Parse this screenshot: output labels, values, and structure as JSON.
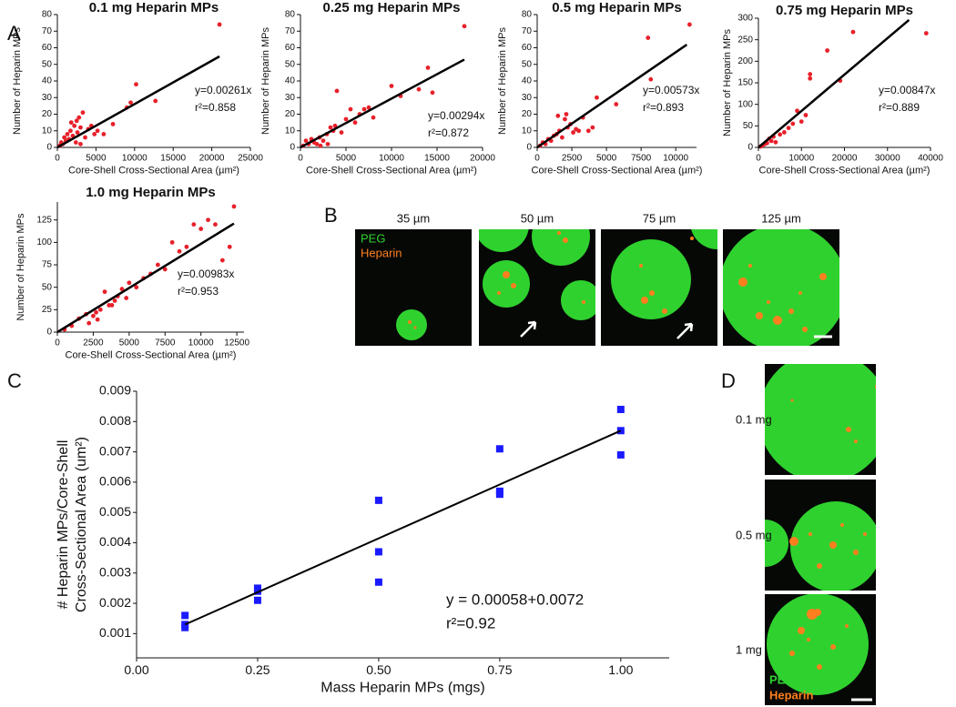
{
  "panel_a": {
    "label": "A"
  },
  "panel_c": {
    "label": "C"
  },
  "panel_b": {
    "label": "B",
    "sizes": [
      "35 µm",
      "50 µm",
      "75 µm",
      "125 µm"
    ],
    "legend": [
      "PEG",
      "Heparin"
    ]
  },
  "panel_d": {
    "label": "D",
    "doses": [
      "0.1 mg",
      "0.5 mg",
      "1 mg"
    ],
    "legend": [
      "PEG",
      "Heparin"
    ]
  },
  "chart_data": [
    {
      "type": "scatter",
      "title": "0.1 mg Heparin MPs",
      "xlabel": "Core-Shell Cross-Sectional Area (µm²)",
      "ylabel": "Number of Heparin MPs",
      "xlim": [
        0,
        25000
      ],
      "xticks": [
        0,
        5000,
        10000,
        15000,
        20000,
        25000
      ],
      "ylim": [
        0,
        80
      ],
      "yticks": [
        0,
        10,
        20,
        30,
        40,
        50,
        60,
        70,
        80
      ],
      "series": [
        {
          "color": "#e8202a",
          "marker": "circle",
          "x": [
            300,
            500,
            700,
            900,
            1100,
            1300,
            1500,
            1700,
            2000,
            2200,
            2400,
            2600,
            2800,
            3000,
            3300,
            3600,
            4000,
            4400,
            4800,
            5200,
            3000,
            2500,
            1800,
            6000,
            7200,
            9000,
            9500,
            10200,
            12700,
            21000
          ],
          "values": [
            1,
            3,
            2,
            6,
            4,
            8,
            5,
            10,
            7,
            13,
            3,
            9,
            18,
            12,
            21,
            6,
            11,
            13,
            8,
            10,
            2,
            16,
            15,
            8,
            14,
            24,
            27,
            38,
            28,
            74
          ]
        }
      ],
      "fit_line": {
        "color": "#000000",
        "x": [
          0,
          21000
        ],
        "y": [
          0,
          54.8
        ]
      },
      "annotations": [
        "y=0.00261x",
        "r²=0.858"
      ]
    },
    {
      "type": "scatter",
      "title": "0.25 mg Heparin MPs",
      "xlabel": "Core-Shell Cross-Sectional Area (µm²)",
      "ylabel": "Number of Heparin MPs",
      "xlim": [
        0,
        20000
      ],
      "xticks": [
        0,
        5000,
        10000,
        15000,
        20000
      ],
      "ylim": [
        0,
        80
      ],
      "yticks": [
        0,
        10,
        20,
        30,
        40,
        50,
        60,
        70,
        80
      ],
      "series": [
        {
          "color": "#e8202a",
          "marker": "circle",
          "x": [
            300,
            600,
            900,
            1200,
            1500,
            1800,
            2100,
            2500,
            2900,
            3300,
            3600,
            4000,
            3800,
            4500,
            5000,
            5500,
            6000,
            6500,
            7000,
            7500,
            8000,
            3000,
            2200,
            10000,
            11000,
            13000,
            14000,
            14500,
            18000
          ],
          "values": [
            1,
            4,
            2,
            5,
            3,
            2,
            6,
            4,
            8,
            12,
            10,
            34,
            13,
            9,
            17,
            23,
            15,
            20,
            23,
            24,
            18,
            2,
            1,
            37,
            31,
            35,
            48,
            33,
            73
          ]
        }
      ],
      "fit_line": {
        "color": "#000000",
        "x": [
          0,
          18000
        ],
        "y": [
          0,
          52.9
        ]
      },
      "annotations": [
        "y=0.00294x",
        "r²=0.872"
      ]
    },
    {
      "type": "scatter",
      "title": "0.5 mg Heparin MPs",
      "xlabel": "Core-Shell Cross-Sectional Area (µm²)",
      "ylabel": "Number of Heparin MPs",
      "xlim": [
        0,
        11500
      ],
      "xticks": [
        0,
        2500,
        5000,
        7500,
        10000
      ],
      "ylim": [
        0,
        80
      ],
      "yticks": [
        0,
        10,
        20,
        30,
        40,
        50,
        60,
        70,
        80
      ],
      "series": [
        {
          "color": "#e8202a",
          "marker": "circle",
          "x": [
            200,
            400,
            600,
            800,
            1000,
            1200,
            1400,
            1600,
            1800,
            2000,
            2200,
            2400,
            2600,
            2800,
            3000,
            1500,
            2100,
            3300,
            3700,
            4000,
            4300,
            5700,
            8000,
            8200,
            11000
          ],
          "values": [
            1,
            3,
            2,
            5,
            4,
            7,
            8,
            10,
            6,
            17,
            12,
            14,
            9,
            11,
            10,
            19,
            20,
            18,
            10,
            12,
            30,
            26,
            66,
            41,
            74
          ]
        }
      ],
      "fit_line": {
        "color": "#000000",
        "x": [
          0,
          10800
        ],
        "y": [
          0,
          61.9
        ]
      },
      "annotations": [
        "y=0.00573x",
        "r²=0.893"
      ]
    },
    {
      "type": "scatter",
      "title": "0.75 mg Heparin MPs",
      "xlabel": "Core-Shell Cross-Sectional Area (µm²)",
      "ylabel": "Number of Heparin MPs",
      "xlim": [
        0,
        40000
      ],
      "xticks": [
        0,
        10000,
        20000,
        30000,
        40000
      ],
      "ylim": [
        0,
        300
      ],
      "yticks": [
        0,
        50,
        100,
        150,
        200,
        250,
        300
      ],
      "series": [
        {
          "color": "#e8202a",
          "marker": "circle",
          "x": [
            500,
            1000,
            1500,
            2000,
            2500,
            3000,
            3500,
            4000,
            5000,
            6000,
            7000,
            8000,
            9000,
            10000,
            11000,
            12000,
            12000,
            16000,
            19000,
            22000,
            39000
          ],
          "values": [
            2,
            5,
            8,
            10,
            20,
            15,
            25,
            12,
            30,
            35,
            45,
            55,
            85,
            60,
            75,
            170,
            160,
            225,
            155,
            268,
            265
          ]
        }
      ],
      "fit_line": {
        "color": "#000000",
        "x": [
          0,
          35000
        ],
        "y": [
          0,
          296
        ]
      },
      "annotations": [
        "y=0.00847x",
        "r²=0.889"
      ]
    },
    {
      "type": "scatter",
      "title": "1.0 mg Heparin MPs",
      "xlabel": "Core-Shell Cross-Sectional Area (µm²)",
      "ylabel": "Number of Heparin MPs",
      "xlim": [
        0,
        13000
      ],
      "xticks": [
        0,
        2500,
        5000,
        7500,
        10000,
        12500
      ],
      "ylim": [
        0,
        145
      ],
      "yticks": [
        0,
        25,
        50,
        75,
        100,
        125
      ],
      "series": [
        {
          "color": "#e8202a",
          "marker": "circle",
          "x": [
            500,
            1000,
            1500,
            2000,
            2200,
            2500,
            2800,
            3000,
            3300,
            3600,
            4000,
            4200,
            4500,
            4800,
            5000,
            5500,
            6000,
            6500,
            7000,
            7500,
            8000,
            8500,
            9000,
            9500,
            10000,
            10500,
            11000,
            11500,
            12000,
            12300,
            2700,
            3800
          ],
          "values": [
            3,
            7,
            15,
            20,
            10,
            18,
            14,
            25,
            45,
            30,
            35,
            40,
            48,
            38,
            55,
            50,
            60,
            65,
            75,
            70,
            100,
            90,
            95,
            120,
            115,
            125,
            120,
            80,
            95,
            140,
            22,
            30
          ]
        }
      ],
      "fit_line": {
        "color": "#000000",
        "x": [
          0,
          12300
        ],
        "y": [
          0,
          121
        ]
      },
      "annotations": [
        "y=0.00983x",
        "r²=0.953"
      ]
    },
    {
      "type": "scatter",
      "xlabel": "Mass Heparin MPs (mgs)",
      "ylabel": [
        "# Heparin MPs/Core-Shell",
        "Cross-Sectional Area (um²)"
      ],
      "xlim": [
        0,
        1.1
      ],
      "xticks": [
        {
          "value": 0,
          "label": "0.00"
        },
        {
          "value": 0.25,
          "label": "0.25"
        },
        {
          "value": 0.5,
          "label": "0.50"
        },
        {
          "value": 0.75,
          "label": "0.75"
        },
        {
          "value": 1,
          "label": "1.00"
        }
      ],
      "ylim": [
        0.0002,
        0.009
      ],
      "yticks": [
        0.001,
        0.002,
        0.003,
        0.004,
        0.005,
        0.006,
        0.007,
        0.008,
        0.009
      ],
      "series": [
        {
          "color": "#1a1aff",
          "marker": "square",
          "x": [
            0.1,
            0.1,
            0.1,
            0.25,
            0.25,
            0.25,
            0.5,
            0.5,
            0.5,
            0.75,
            0.75,
            0.75,
            1,
            1,
            1
          ],
          "values": [
            0.0016,
            0.0013,
            0.0012,
            0.0025,
            0.0024,
            0.0021,
            0.0054,
            0.0037,
            0.0027,
            0.0071,
            0.0057,
            0.0056,
            0.0084,
            0.0077,
            0.0069
          ]
        }
      ],
      "fit_line": {
        "color": "#000000",
        "x": [
          0.1,
          1
        ],
        "y": [
          0.0013,
          0.0077
        ]
      },
      "annotations": [
        "y = 0.00058+0.0072",
        "r²=0.92"
      ]
    }
  ]
}
